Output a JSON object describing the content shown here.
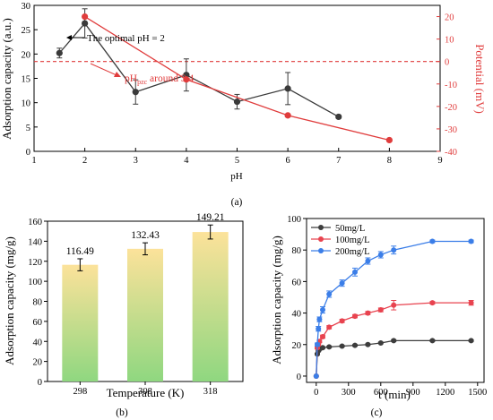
{
  "chart_data": [
    {
      "panel": "(a)",
      "type": "line",
      "xlabel": "pH",
      "ylabel": "Adsorption capacity (a.u.)",
      "y2label": "Potential (mV)",
      "xlim": [
        1,
        9
      ],
      "ylim": [
        0,
        30
      ],
      "y2lim": [
        -40,
        25
      ],
      "xticks": [
        "1",
        "2",
        "3",
        "4",
        "5",
        "6",
        "7",
        "8",
        "9"
      ],
      "yticks": [
        "0",
        "5",
        "10",
        "15",
        "20",
        "25",
        "30"
      ],
      "y2ticks": [
        "20",
        "10",
        "0",
        "-10",
        "-20",
        "-30",
        "-40"
      ],
      "series": [
        {
          "axis": "left",
          "color": "#3a3a3a",
          "x": [
            1.5,
            2,
            3,
            4,
            5,
            6,
            7
          ],
          "values": [
            20.2,
            26.3,
            12.2,
            15.7,
            10.2,
            12.9,
            7.1
          ],
          "errors": [
            1.0,
            3.0,
            2.5,
            3.3,
            1.5,
            3.3,
            0.3
          ]
        },
        {
          "axis": "right",
          "color": "#e03c3c",
          "x": [
            2,
            4,
            6,
            8
          ],
          "values": [
            20,
            -8,
            -24,
            -35
          ]
        }
      ],
      "reference_line": {
        "axis": "right",
        "value": 0,
        "color": "#e03c3c"
      },
      "annotations": {
        "optimal": "The optimal pH = 2",
        "pzc_main": "pH",
        "pzc_sub": "pzc",
        "pzc_tail": " around 3.4"
      }
    },
    {
      "panel": "(b)",
      "type": "bar",
      "xlabel": "Temperature (K)",
      "ylabel": "Adsorption capacity (mg/g)",
      "categories": [
        "298",
        "308",
        "318"
      ],
      "values": [
        116.49,
        132.43,
        149.21
      ],
      "value_labels": [
        "116.49",
        "132.43",
        "149.21"
      ],
      "errors": [
        6,
        6,
        7
      ],
      "ylim": [
        0,
        160
      ],
      "yticks": [
        "0",
        "20",
        "40",
        "60",
        "80",
        "100",
        "120",
        "140",
        "160"
      ],
      "bar_colors": {
        "top": "#fce29a",
        "bottom": "#8fd780"
      }
    },
    {
      "panel": "(c)",
      "type": "line",
      "xlabel": "t (min)",
      "ylabel": "Adsorption capacity (mg/g)",
      "xlim": [
        -90,
        1560
      ],
      "ylim": [
        -4,
        100
      ],
      "xticks": [
        0,
        300,
        600,
        900,
        1200,
        1500
      ],
      "yticks": [
        0,
        20,
        40,
        60,
        80,
        100
      ],
      "legend": "top-left",
      "series": [
        {
          "name": "50mg/L",
          "color": "#3d3d3d",
          "x": [
            0,
            10,
            20,
            30,
            60,
            120,
            240,
            360,
            480,
            600,
            720,
            1080,
            1440
          ],
          "values": [
            0,
            14,
            16,
            17,
            18,
            18.5,
            19,
            19.5,
            20,
            21,
            22.5,
            22.5,
            22.5
          ],
          "errors": [
            0,
            0.5,
            0.5,
            0.5,
            0.5,
            0.5,
            0.5,
            0.5,
            0.5,
            0.5,
            0.6,
            0.5,
            0.5
          ]
        },
        {
          "name": "100mg/L",
          "color": "#e8434f",
          "x": [
            0,
            10,
            20,
            30,
            60,
            120,
            240,
            360,
            480,
            600,
            720,
            1080,
            1440
          ],
          "values": [
            0,
            18,
            20,
            22,
            25,
            31,
            35,
            38,
            40,
            42,
            45,
            46.5,
            46.5
          ],
          "errors": [
            0,
            0.8,
            0.8,
            0.8,
            1,
            1,
            1,
            1,
            1,
            1.2,
            3,
            0.8,
            1.5
          ]
        },
        {
          "name": "200mg/L",
          "color": "#3b7ee8",
          "x": [
            0,
            10,
            20,
            30,
            60,
            120,
            240,
            360,
            480,
            600,
            720,
            1080,
            1440
          ],
          "values": [
            0,
            20,
            30,
            36,
            42,
            52,
            59,
            66,
            73,
            77,
            80,
            85.5,
            85.5
          ],
          "errors": [
            0,
            1,
            1.5,
            1.5,
            2,
            2,
            2,
            2.5,
            2,
            2,
            2.5,
            0.8,
            0.8
          ]
        }
      ]
    }
  ]
}
